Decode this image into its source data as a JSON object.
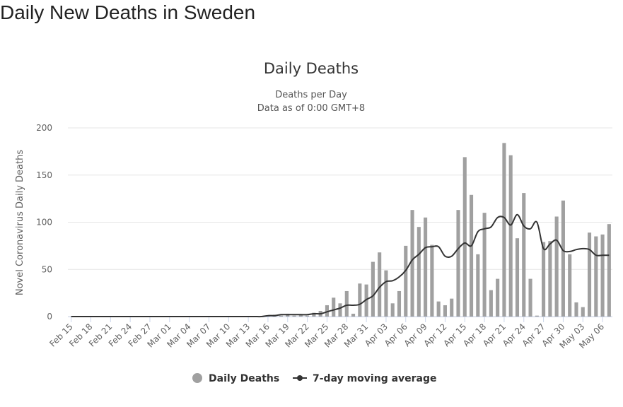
{
  "page": {
    "heading": "Daily New Deaths in Sweden"
  },
  "chart_data": {
    "type": "bar",
    "title": "Daily Deaths",
    "subtitle_lines": [
      "Deaths per Day",
      "Data as of 0:00 GMT+8"
    ],
    "ylabel": "Novel Coronavirus Daily Deaths",
    "xlabel": "",
    "ylim": [
      0,
      200
    ],
    "yticks": [
      0,
      50,
      100,
      150,
      200
    ],
    "grid": true,
    "legend_position": "bottom-center",
    "colors": {
      "bars": "#a0a0a0",
      "line": "#333333",
      "grid": "#e6e6e6",
      "axis": "#ccd6eb"
    },
    "categories": [
      "Feb 15",
      "Feb 16",
      "Feb 17",
      "Feb 18",
      "Feb 19",
      "Feb 20",
      "Feb 21",
      "Feb 22",
      "Feb 23",
      "Feb 24",
      "Feb 25",
      "Feb 26",
      "Feb 27",
      "Feb 28",
      "Feb 29",
      "Mar 01",
      "Mar 02",
      "Mar 03",
      "Mar 04",
      "Mar 05",
      "Mar 06",
      "Mar 07",
      "Mar 08",
      "Mar 09",
      "Mar 10",
      "Mar 11",
      "Mar 12",
      "Mar 13",
      "Mar 14",
      "Mar 15",
      "Mar 16",
      "Mar 17",
      "Mar 18",
      "Mar 19",
      "Mar 20",
      "Mar 21",
      "Mar 22",
      "Mar 23",
      "Mar 24",
      "Mar 25",
      "Mar 26",
      "Mar 27",
      "Mar 28",
      "Mar 29",
      "Mar 30",
      "Mar 31",
      "Apr 01",
      "Apr 02",
      "Apr 03",
      "Apr 04",
      "Apr 05",
      "Apr 06",
      "Apr 07",
      "Apr 08",
      "Apr 09",
      "Apr 10",
      "Apr 11",
      "Apr 12",
      "Apr 13",
      "Apr 14",
      "Apr 15",
      "Apr 16",
      "Apr 17",
      "Apr 18",
      "Apr 19",
      "Apr 20",
      "Apr 21",
      "Apr 22",
      "Apr 23",
      "Apr 24",
      "Apr 25",
      "Apr 26",
      "Apr 27",
      "Apr 28",
      "Apr 29",
      "Apr 30",
      "May 01",
      "May 02",
      "May 03",
      "May 04",
      "May 05",
      "May 06",
      "May 07"
    ],
    "xtick_labels": [
      "Feb 15",
      "Feb 18",
      "Feb 21",
      "Feb 24",
      "Feb 27",
      "Mar 01",
      "Mar 04",
      "Mar 07",
      "Mar 10",
      "Mar 13",
      "Mar 16",
      "Mar 19",
      "Mar 22",
      "Mar 25",
      "Mar 28",
      "Mar 31",
      "Apr 03",
      "Apr 06",
      "Apr 09",
      "Apr 12",
      "Apr 15",
      "Apr 18",
      "Apr 21",
      "Apr 24",
      "Apr 27",
      "Apr 30",
      "May 03",
      "May 06"
    ],
    "series": [
      {
        "name": "Daily Deaths",
        "type": "bar",
        "values": [
          0,
          0,
          0,
          0,
          0,
          0,
          0,
          0,
          0,
          0,
          0,
          0,
          0,
          0,
          0,
          0,
          0,
          0,
          0,
          0,
          0,
          0,
          0,
          0,
          0,
          0,
          0,
          0,
          0,
          0,
          1,
          2,
          1,
          3,
          1,
          2,
          1,
          4,
          6,
          12,
          20,
          14,
          27,
          3,
          35,
          34,
          58,
          68,
          49,
          14,
          27,
          75,
          113,
          95,
          105,
          76,
          16,
          12,
          19,
          113,
          169,
          129,
          66,
          110,
          28,
          40,
          184,
          171,
          83,
          131,
          40,
          1,
          79,
          80,
          106,
          123,
          66,
          15,
          10,
          89,
          85,
          87,
          98
        ]
      },
      {
        "name": "7-day moving average",
        "type": "line",
        "values": [
          0,
          0,
          0,
          0,
          0,
          0,
          0,
          0,
          0,
          0,
          0,
          0,
          0,
          0,
          0,
          0,
          0,
          0,
          0,
          0,
          0,
          0,
          0,
          0,
          0,
          0,
          0,
          0,
          0,
          0,
          1,
          1,
          2,
          2,
          2,
          2,
          2,
          3,
          3,
          5,
          7,
          9,
          12,
          12,
          13,
          18,
          22,
          31,
          37,
          38,
          42,
          49,
          60,
          66,
          73,
          74,
          74,
          64,
          64,
          72,
          78,
          75,
          90,
          93,
          95,
          105,
          105,
          97,
          108,
          96,
          93,
          100,
          72,
          77,
          81,
          70,
          69,
          71,
          72,
          71,
          65,
          65,
          65
        ]
      }
    ]
  }
}
